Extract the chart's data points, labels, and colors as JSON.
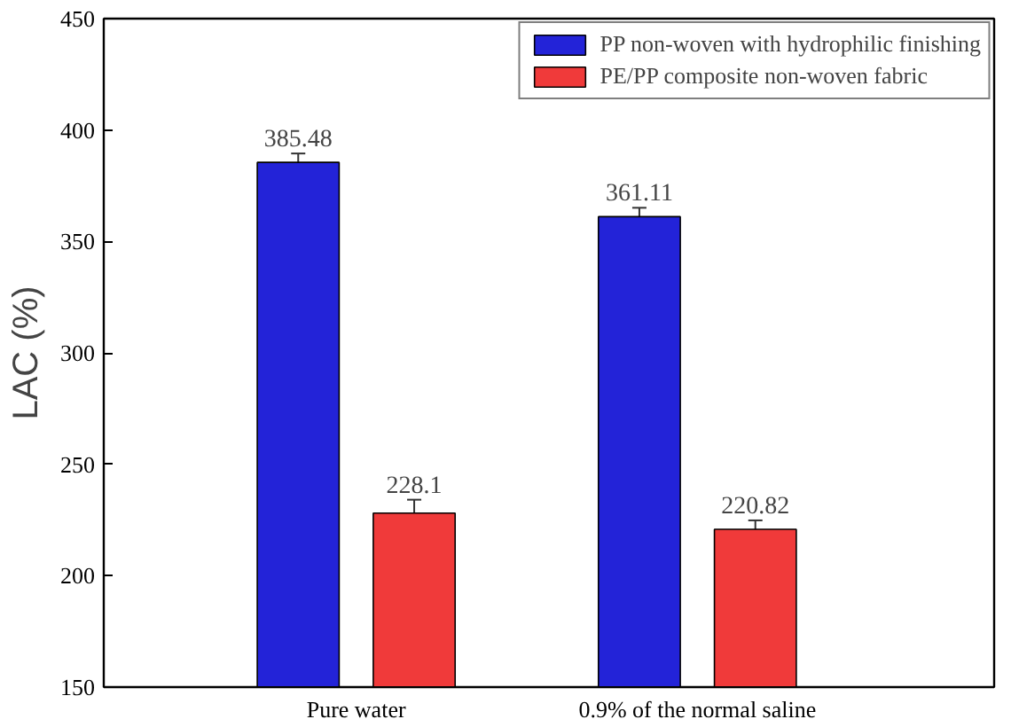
{
  "chart_data": {
    "type": "bar",
    "ylabel": "LAC (%)",
    "categories": [
      "Pure water",
      "0.9% of the normal saline"
    ],
    "series": [
      {
        "name": "PP non-woven with hydrophilic finishing",
        "color": "#2323d8",
        "values": [
          385.48,
          361.11
        ],
        "errors": [
          4,
          4
        ]
      },
      {
        "name": "PE/PP composite non-woven fabric",
        "color": "#f03a3a",
        "values": [
          228.1,
          220.82
        ],
        "errors": [
          6,
          4
        ]
      }
    ],
    "ylim": [
      150,
      450
    ],
    "yticks": [
      150,
      200,
      250,
      300,
      350,
      400,
      450
    ],
    "data_labels": true,
    "grid": false,
    "legend": "top right"
  }
}
